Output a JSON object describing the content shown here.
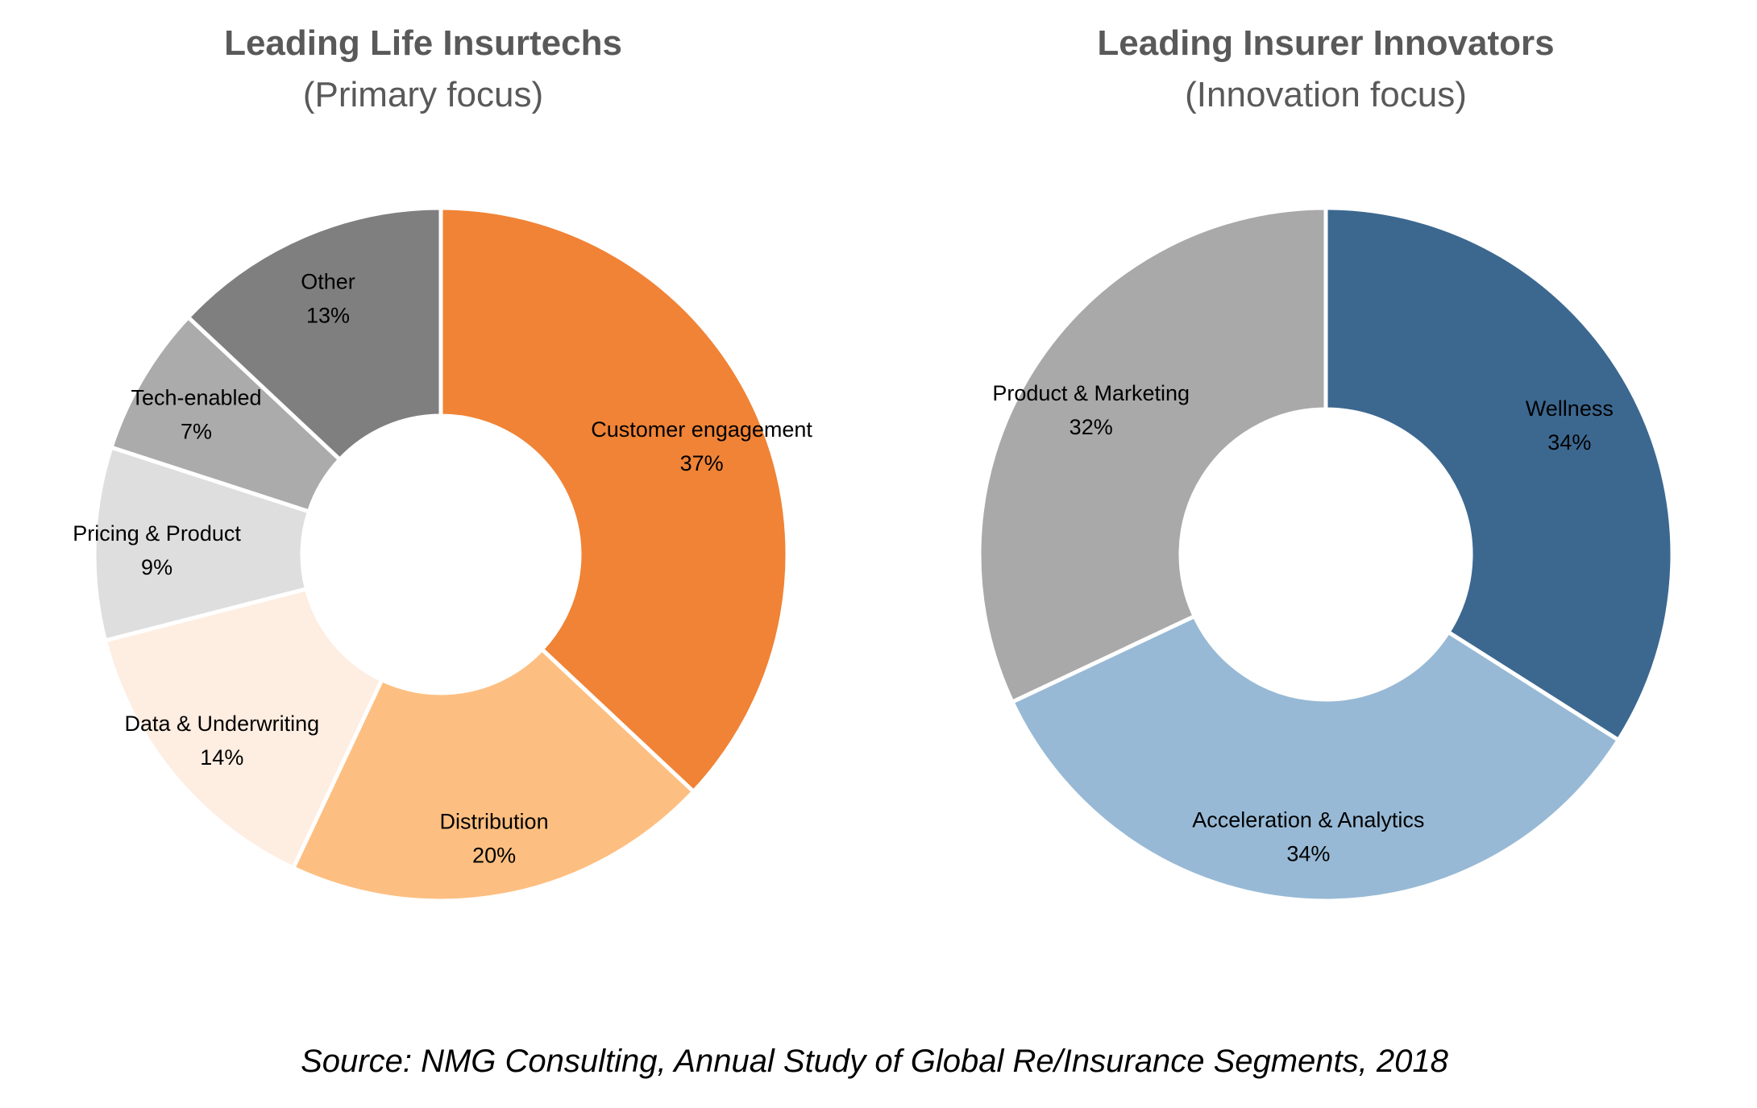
{
  "source_note": "Source: NMG Consulting,  Annual Study of Global Re/Insurance Segments, 2018",
  "chart_data": [
    {
      "type": "pie",
      "donut": true,
      "title": "Leading Life Insurtechs",
      "subtitle": "(Primary focus)",
      "slices": [
        {
          "label": "Customer engagement",
          "value": 37,
          "value_label": "37%",
          "color": "#F08336"
        },
        {
          "label": "Distribution",
          "value": 20,
          "value_label": "20%",
          "color": "#FDBF81"
        },
        {
          "label": "Data & Underwriting",
          "value": 14,
          "value_label": "14%",
          "color": "#FEEDE1"
        },
        {
          "label": "Pricing & Product",
          "value": 9,
          "value_label": "9%",
          "color": "#DEDEDE"
        },
        {
          "label": "Tech-enabled",
          "value": 7,
          "value_label": "7%",
          "color": "#ABABAB"
        },
        {
          "label": "Other",
          "value": 13,
          "value_label": "13%",
          "color": "#7F7F7F"
        }
      ]
    },
    {
      "type": "pie",
      "donut": true,
      "title": "Leading Insurer Innovators",
      "subtitle": "(Innovation focus)",
      "slices": [
        {
          "label": "Wellness",
          "value": 34,
          "value_label": "34%",
          "color": "#3C6890"
        },
        {
          "label": "Acceleration & Analytics",
          "value": 34,
          "value_label": "34%",
          "color": "#97B9D5"
        },
        {
          "label": "Product & Marketing",
          "value": 32,
          "value_label": "32%",
          "color": "#A9A9A9"
        }
      ]
    }
  ]
}
